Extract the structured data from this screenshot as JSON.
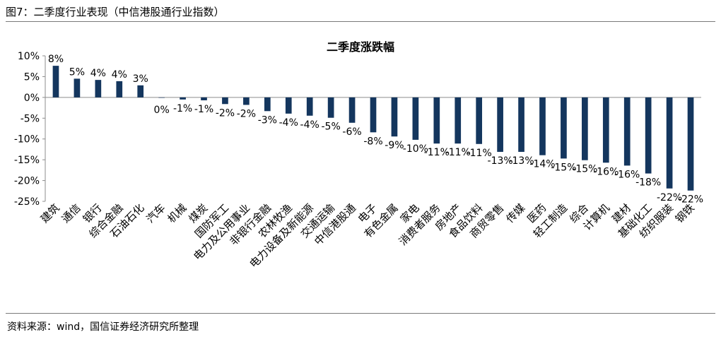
{
  "figure": {
    "title": "图7：二季度行业表现（中信港股通行业指数）",
    "source": "资料来源：wind，国信证券经济研究所整理"
  },
  "chart_data": {
    "type": "bar",
    "title": "二季度涨跌幅",
    "xlabel": "",
    "ylabel": "",
    "ylim": [
      -25,
      10
    ],
    "ytick_values": [
      10,
      5,
      0,
      -5,
      -10,
      -15,
      -20,
      -25
    ],
    "ytick_labels": [
      "10%",
      "5%",
      "0%",
      "-5%",
      "-10%",
      "-15%",
      "-20%",
      "-25%"
    ],
    "bar_color": "#14365e",
    "grid": false,
    "legend": "none",
    "categories": [
      "建筑",
      "通信",
      "银行",
      "综合金融",
      "石油石化",
      "汽车",
      "机械",
      "煤炭",
      "国防军工",
      "电力及公用事业",
      "非银行金融",
      "农林牧渔",
      "电力设备及新能源",
      "交通运输",
      "中信港股通",
      "电子",
      "有色金属",
      "家电",
      "消费者服务",
      "房地产",
      "食品饮料",
      "商贸零售",
      "传媒",
      "医药",
      "轻工制造",
      "综合",
      "计算机",
      "建材",
      "基础化工",
      "纺织服装",
      "钢铁"
    ],
    "values": [
      7.6,
      4.5,
      4.2,
      3.9,
      2.9,
      -0.1,
      -0.5,
      -0.7,
      -1.6,
      -1.8,
      -3.3,
      -3.9,
      -4.4,
      -4.9,
      -6.1,
      -8.4,
      -9.4,
      -10.2,
      -11.1,
      -11.1,
      -11.2,
      -13.1,
      -13.1,
      -13.9,
      -14.7,
      -15.1,
      -15.7,
      -16.4,
      -18.3,
      -21.9,
      -22.4
    ],
    "data_labels": [
      "8%",
      "5%",
      "4%",
      "4%",
      "3%",
      "0%",
      "-1%",
      "-1%",
      "-2%",
      "-2%",
      "-3%",
      "-4%",
      "-4%",
      "-5%",
      "-6%",
      "-8%",
      "-9%",
      "-10%",
      "-11%",
      "-11%",
      "-11%",
      "-13%",
      "-13%",
      "-14%",
      "-15%",
      "-15%",
      "-16%",
      "-16%",
      "-18%",
      "-22%",
      "-22%"
    ]
  }
}
